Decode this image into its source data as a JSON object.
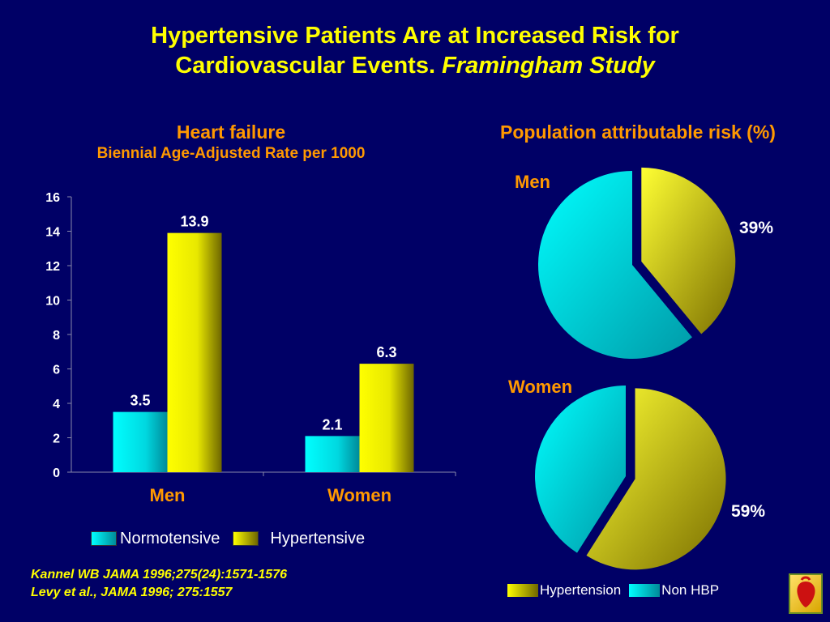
{
  "title": {
    "line1": "Hypertensive Patients Are at Increased Risk for",
    "line2_plain": "Cardiovascular Events.",
    "line2_italic": "Framingham Study"
  },
  "left_heading": {
    "title": "Heart failure",
    "subtitle": "Biennial Age-Adjusted Rate per 1000"
  },
  "right_heading": "Population attributable risk (%)",
  "colors": {
    "background": "#000066",
    "normotensive": "#00e5e5",
    "hypertensive": "#ffff00",
    "title": "#ffff00",
    "heading": "#ff9900"
  },
  "chart_data": [
    {
      "type": "bar",
      "title": "Heart failure",
      "subtitle": "Biennial Age-Adjusted Rate per 1000",
      "categories": [
        "Men",
        "Women"
      ],
      "series": [
        {
          "name": "Normotensive",
          "values": [
            3.5,
            2.1
          ]
        },
        {
          "name": "Hypertensive",
          "values": [
            13.9,
            6.3
          ]
        }
      ],
      "ylim": [
        0,
        16
      ],
      "yticks": [
        "0",
        "2",
        "4",
        "6",
        "8",
        "10",
        "12",
        "14",
        "16"
      ],
      "data_labels": [
        [
          "3.5",
          "2.1"
        ],
        [
          "13.9",
          "6.3"
        ]
      ],
      "legend": "bottom",
      "grid": false
    },
    {
      "type": "pie",
      "title": "Men",
      "slices": [
        {
          "name": "Hypertension",
          "value": 39
        },
        {
          "name": "Non HBP",
          "value": 61
        }
      ],
      "labels": [
        "39%"
      ]
    },
    {
      "type": "pie",
      "title": "Women",
      "slices": [
        {
          "name": "Hypertension",
          "value": 59
        },
        {
          "name": "Non HBP",
          "value": 41
        }
      ],
      "labels": [
        "59%"
      ]
    }
  ],
  "legend": {
    "normotensive": "Normotensive",
    "hypertensive": "Hypertensive"
  },
  "pie_legend": {
    "hypertension": "Hypertension",
    "non_hbp": "Non HBP"
  },
  "pies": {
    "men_label": "Men",
    "men_pct": "39%",
    "women_label": "Women",
    "women_pct": "59%"
  },
  "citations": [
    "Kannel WB JAMA 1996;275(24):1571-1576",
    "Levy et al., JAMA 1996; 275:1557"
  ]
}
